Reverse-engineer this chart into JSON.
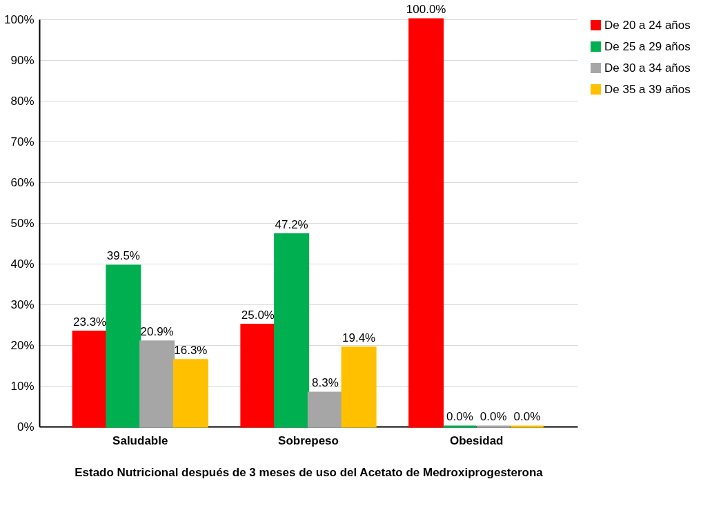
{
  "chart_data": {
    "type": "bar",
    "xlabel": "Estado Nutricional después de 3 meses de uso del Acetato de Medroxiprogesterona",
    "categories": [
      "Saludable",
      "Sobrepeso",
      "Obesidad"
    ],
    "series": [
      {
        "name": "De 20 a 24 años",
        "color": "#ff0000",
        "values": [
          23.3,
          25.0,
          100.0
        ],
        "value_labels": [
          "23.3%",
          "25.0%",
          "100.0%"
        ]
      },
      {
        "name": "De 25 a 29 años",
        "color": "#00b050",
        "values": [
          39.5,
          47.2,
          0.0
        ],
        "value_labels": [
          "39.5%",
          "47.2%",
          "0.0%"
        ]
      },
      {
        "name": "De 30 a 34 años",
        "color": "#a6a6a6",
        "values": [
          20.9,
          8.3,
          0.0
        ],
        "value_labels": [
          "20.9%",
          "8.3%",
          "0.0%"
        ]
      },
      {
        "name": "De 35 a 39 años",
        "color": "#ffc000",
        "values": [
          16.3,
          19.4,
          0.0
        ],
        "value_labels": [
          "16.3%",
          "19.4%",
          "0.0%"
        ]
      }
    ],
    "ylim": [
      0,
      100
    ],
    "yticks": [
      {
        "value": 0,
        "label": "0%"
      },
      {
        "value": 10,
        "label": "10%"
      },
      {
        "value": 20,
        "label": "20%"
      },
      {
        "value": 30,
        "label": "30%"
      },
      {
        "value": 40,
        "label": "40%"
      },
      {
        "value": 50,
        "label": "50%"
      },
      {
        "value": 60,
        "label": "60%"
      },
      {
        "value": 70,
        "label": "70%"
      },
      {
        "value": 80,
        "label": "80%"
      },
      {
        "value": 90,
        "label": "90%"
      },
      {
        "value": 100,
        "label": "100%"
      }
    ],
    "grid": "y",
    "legend": "right"
  }
}
